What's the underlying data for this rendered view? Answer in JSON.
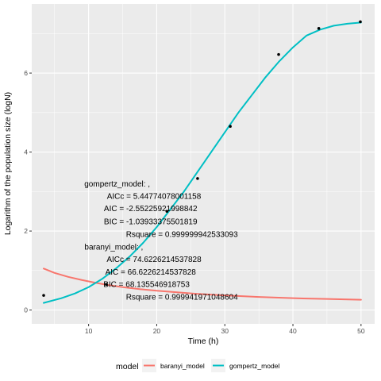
{
  "chart_data": {
    "type": "line",
    "xlabel": "Time (h)",
    "ylabel": "Logarithm of the population size (logN)",
    "xlim": [
      1.65,
      52.0
    ],
    "ylim": [
      -0.35,
      7.75
    ],
    "x_ticks": [
      10,
      20,
      30,
      40,
      50
    ],
    "y_ticks": [
      0,
      2,
      4,
      6
    ],
    "grid": true,
    "legend": {
      "title": "model",
      "position": "bottom",
      "entries": [
        {
          "label": "baranyi_model",
          "color": "#F8766D"
        },
        {
          "label": "gompertz_model",
          "color": "#00BFC4"
        }
      ]
    },
    "points": {
      "x": [
        3.4,
        12.6,
        21.5,
        26.0,
        30.8,
        37.9,
        43.8,
        49.9
      ],
      "y": [
        0.37,
        0.65,
        2.5,
        3.33,
        4.65,
        6.47,
        7.13,
        7.3
      ]
    },
    "series": [
      {
        "name": "baranyi_model",
        "color": "#F8766D",
        "x": [
          3.4,
          5,
          7,
          9,
          11,
          13,
          15,
          17.5,
          20,
          23,
          26,
          30,
          35,
          40,
          45,
          50
        ],
        "y": [
          1.05,
          0.94,
          0.84,
          0.76,
          0.69,
          0.63,
          0.58,
          0.53,
          0.49,
          0.45,
          0.41,
          0.37,
          0.33,
          0.3,
          0.28,
          0.26
        ]
      },
      {
        "name": "gompertz_model",
        "color": "#00BFC4",
        "x": [
          3.4,
          6,
          8,
          10,
          12,
          14,
          16,
          18,
          20,
          22,
          24,
          26,
          28,
          30,
          32,
          34,
          36,
          38,
          40,
          42,
          44,
          46,
          48,
          50
        ],
        "y": [
          0.18,
          0.3,
          0.42,
          0.58,
          0.79,
          1.05,
          1.35,
          1.7,
          2.1,
          2.55,
          3.0,
          3.5,
          4.0,
          4.5,
          5.0,
          5.45,
          5.9,
          6.3,
          6.65,
          6.95,
          7.1,
          7.2,
          7.25,
          7.28
        ]
      }
    ],
    "annotations": [
      {
        "text": "gompertz_model: ,",
        "x": 14.2,
        "y": 3.2
      },
      {
        "text": "AICc = 5.44774078001158",
        "x": 19.6,
        "y": 2.89
      },
      {
        "text": "AIC = -2.55225921998842",
        "x": 19.1,
        "y": 2.57
      },
      {
        "text": "BIC = -1.03933375501819",
        "x": 19.1,
        "y": 2.24
      },
      {
        "text": "Rsquare = 0.999999942533093",
        "x": 23.7,
        "y": 1.92
      },
      {
        "text": "baranyi_model: ,",
        "x": 13.7,
        "y": 1.6
      },
      {
        "text": "AICc = 74.6226214537828",
        "x": 19.6,
        "y": 1.29
      },
      {
        "text": "AIC = 66.6226214537828",
        "x": 19.1,
        "y": 0.97
      },
      {
        "text": "BIC = 68.135546918753",
        "x": 18.5,
        "y": 0.65
      },
      {
        "text": "Rsquare = 0.999941971048604",
        "x": 23.7,
        "y": 0.33
      }
    ]
  }
}
